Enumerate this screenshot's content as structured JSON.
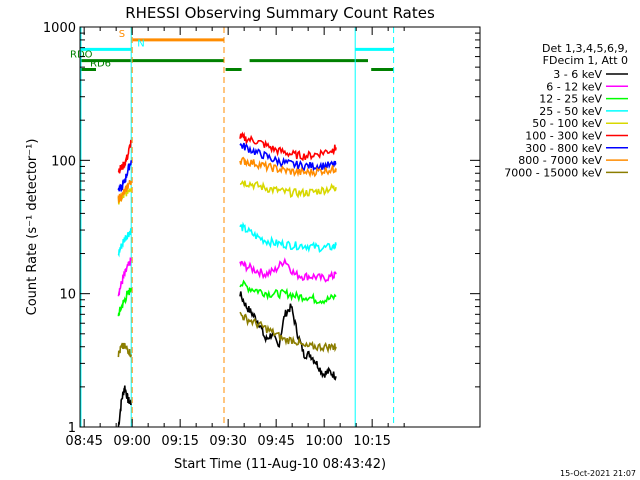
{
  "chart_data": {
    "type": "line",
    "title": "RHESSI Observing Summary Count Rates",
    "xlabel": "Start Time (11-Aug-10 08:43:42)",
    "ylabel": "Count Rate (s⁻¹ detector⁻¹)",
    "yscale": "log",
    "ylim": [
      1,
      1000
    ],
    "xlim_min": [
      0,
      125
    ],
    "x_unit": "minutes after 08:43:42",
    "x_ticks": [
      {
        "label": "08:45",
        "t": 1.3
      },
      {
        "label": "09:00",
        "t": 16.3
      },
      {
        "label": "09:15",
        "t": 31.3
      },
      {
        "label": "09:30",
        "t": 46.3
      },
      {
        "label": "09:45",
        "t": 61.3
      },
      {
        "label": "10:00",
        "t": 76.3
      },
      {
        "label": "10:15",
        "t": 91.3
      }
    ],
    "y_ticks": [
      {
        "label": "1",
        "v": 1
      },
      {
        "label": "10",
        "v": 10
      },
      {
        "label": "100",
        "v": 100
      },
      {
        "label": "1000",
        "v": 1000
      }
    ],
    "legend": {
      "header": [
        "Det 1,3,4,5,6,9,",
        "FDecim 1, Att 0"
      ],
      "placement": "right"
    },
    "series": [
      {
        "name": "3 - 6 keV",
        "color": "#000000",
        "segments": [
          {
            "x": [
              12.0,
              13.0,
              14.0,
              15.0,
              16.0
            ],
            "y": [
              1.0,
              1.6,
              2.0,
              1.6,
              1.5
            ]
          },
          {
            "x": [
              50.0,
              52.0,
              54.0,
              56.0,
              58.0,
              60.0,
              62.0,
              64.0,
              66.0,
              68.0,
              70.0,
              72.0,
              74.0,
              76.0,
              78.0,
              80.0
            ],
            "y": [
              10.0,
              8.0,
              7.0,
              6.0,
              4.5,
              5.0,
              4.0,
              7.0,
              8.0,
              5.0,
              3.5,
              3.5,
              3.0,
              2.5,
              2.6,
              2.4
            ]
          }
        ]
      },
      {
        "name": "6 - 12 keV",
        "color": "#ff00ff",
        "segments": [
          {
            "x": [
              12.0,
              13.0,
              14.0,
              15.0,
              16.0
            ],
            "y": [
              10.0,
              12.0,
              14.0,
              16.0,
              18.0
            ]
          },
          {
            "x": [
              50.0,
              52.0,
              55.0,
              58.0,
              61.0,
              64.0,
              67.0,
              70.0,
              73.0,
              76.0,
              79.0,
              80.0
            ],
            "y": [
              17.0,
              16.0,
              15.0,
              14.0,
              15.0,
              18.0,
              14.0,
              13.5,
              13.5,
              13.0,
              13.5,
              14.0
            ]
          }
        ]
      },
      {
        "name": "12 - 25 keV",
        "color": "#00ff00",
        "segments": [
          {
            "x": [
              12.0,
              13.0,
              14.0,
              15.0,
              16.0
            ],
            "y": [
              7.0,
              8.0,
              9.0,
              10.0,
              11.0
            ]
          },
          {
            "x": [
              50.0,
              53.0,
              56.0,
              59.0,
              62.0,
              65.0,
              68.0,
              71.0,
              74.0,
              77.0,
              80.0
            ],
            "y": [
              12.0,
              11.0,
              10.5,
              10.0,
              10.0,
              10.0,
              9.5,
              9.5,
              9.0,
              9.0,
              9.5
            ]
          }
        ]
      },
      {
        "name": "25 - 50 keV",
        "color": "#00ffff",
        "segments": [
          {
            "x": [
              12.0,
              13.0,
              14.0,
              15.0,
              16.0
            ],
            "y": [
              20.0,
              23.0,
              26.0,
              28.0,
              30.0
            ]
          },
          {
            "x": [
              50.0,
              52.0,
              55.0,
              58.0,
              61.0,
              64.0,
              67.0,
              70.0,
              73.0,
              76.0,
              79.0,
              80.0
            ],
            "y": [
              32.0,
              30.0,
              27.0,
              25.0,
              24.0,
              23.5,
              23.0,
              23.0,
              22.5,
              22.0,
              22.5,
              23.0
            ]
          }
        ]
      },
      {
        "name": "50 - 100 keV",
        "color": "#d8d800",
        "segments": [
          {
            "x": [
              12.0,
              13.0,
              14.0,
              15.0,
              16.0
            ],
            "y": [
              50.0,
              52.0,
              55.0,
              60.0,
              62.0
            ]
          },
          {
            "x": [
              50.0,
              52.0,
              55.0,
              58.0,
              61.0,
              64.0,
              67.0,
              70.0,
              73.0,
              76.0,
              79.0,
              80.0
            ],
            "y": [
              70.0,
              68.0,
              65.0,
              62.0,
              60.0,
              58.0,
              57.0,
              57.0,
              58.0,
              60.0,
              62.0,
              63.0
            ]
          }
        ]
      },
      {
        "name": "100 - 300 keV",
        "color": "#ff0000",
        "segments": [
          {
            "x": [
              12.0,
              13.0,
              14.0,
              15.0,
              16.0
            ],
            "y": [
              85.0,
              88.0,
              95.0,
              110.0,
              140.0
            ]
          },
          {
            "x": [
              50.0,
              52.0,
              55.0,
              58.0,
              61.0,
              64.0,
              67.0,
              70.0,
              73.0,
              76.0,
              79.0,
              80.0
            ],
            "y": [
              150.0,
              145.0,
              140.0,
              130.0,
              120.0,
              115.0,
              110.0,
              108.0,
              110.0,
              115.0,
              120.0,
              125.0
            ]
          }
        ]
      },
      {
        "name": "300 - 800 keV",
        "color": "#0000ff",
        "segments": [
          {
            "x": [
              12.0,
              13.0,
              14.0,
              15.0,
              16.0
            ],
            "y": [
              60.0,
              62.0,
              70.0,
              85.0,
              100.0
            ]
          },
          {
            "x": [
              50.0,
              52.0,
              55.0,
              58.0,
              61.0,
              64.0,
              67.0,
              70.0,
              73.0,
              76.0,
              79.0,
              80.0
            ],
            "y": [
              130.0,
              125.0,
              115.0,
              108.0,
              100.0,
              96.0,
              93.0,
              91.0,
              91.0,
              91.0,
              92.0,
              93.0
            ]
          }
        ]
      },
      {
        "name": "800 - 7000 keV",
        "color": "#ff8c00",
        "segments": [
          {
            "x": [
              12.0,
              13.0,
              14.0,
              15.0,
              16.0
            ],
            "y": [
              52.0,
              54.0,
              58.0,
              65.0,
              70.0
            ]
          },
          {
            "x": [
              50.0,
              52.0,
              55.0,
              58.0,
              61.0,
              64.0,
              67.0,
              70.0,
              73.0,
              76.0,
              79.0,
              80.0
            ],
            "y": [
              100.0,
              98.0,
              95.0,
              90.0,
              87.0,
              84.0,
              82.0,
              81.0,
              82.0,
              84.0,
              86.0,
              87.0
            ]
          }
        ]
      },
      {
        "name": "7000 - 15000 keV",
        "color": "#8b7d00",
        "segments": [
          {
            "x": [
              12.0,
              13.0,
              14.0,
              15.0,
              16.0
            ],
            "y": [
              3.5,
              4.0,
              4.0,
              3.8,
              3.5
            ]
          },
          {
            "x": [
              50.0,
              52.0,
              55.0,
              58.0,
              61.0,
              64.0,
              67.0,
              70.0,
              73.0,
              76.0,
              79.0,
              80.0
            ],
            "y": [
              7.0,
              6.5,
              6.0,
              5.5,
              5.0,
              4.5,
              4.5,
              4.0,
              4.0,
              4.0,
              4.0,
              4.0
            ]
          }
        ]
      }
    ],
    "flags": [
      {
        "label": "S",
        "color": "#ff8c00",
        "segments": [
          [
            16.5,
            45.0
          ]
        ],
        "v": 800
      },
      {
        "label": "N",
        "color": "#00ffff",
        "segments": [
          [
            0.3,
            16.0
          ],
          [
            86.0,
            98.0
          ]
        ],
        "v": 680
      },
      {
        "label": "RDO",
        "color": "#008000",
        "segments": [
          [
            0.0,
            45.0
          ],
          [
            53.0,
            90.0
          ]
        ],
        "v": 560
      },
      {
        "label": "RD6",
        "color": "#008000",
        "segments": [
          [
            0.0,
            5.0
          ],
          [
            45.5,
            50.5
          ],
          [
            91.0,
            98.0
          ]
        ],
        "v": 480
      }
    ],
    "vlines": [
      {
        "t": 0.3,
        "color": "#00ffff",
        "dash": false
      },
      {
        "t": 16.0,
        "color": "#00ffff",
        "dash": false
      },
      {
        "t": 16.3,
        "color": "#ff8c00",
        "dash": true
      },
      {
        "t": 45.0,
        "color": "#ff8c00",
        "dash": true
      },
      {
        "t": 86.0,
        "color": "#00ffff",
        "dash": false
      },
      {
        "t": 98.0,
        "color": "#00ffff",
        "dash": true
      }
    ],
    "grid": false,
    "footer": "15-Oct-2021 21:07"
  }
}
